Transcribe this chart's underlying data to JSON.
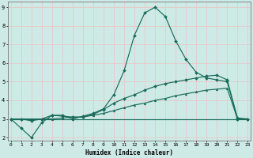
{
  "xlabel": "Humidex (Indice chaleur)",
  "xlim": [
    -0.3,
    23.3
  ],
  "ylim": [
    1.85,
    9.3
  ],
  "xtick_vals": [
    0,
    1,
    2,
    3,
    4,
    5,
    6,
    7,
    8,
    9,
    10,
    11,
    12,
    13,
    14,
    15,
    16,
    17,
    18,
    19,
    20,
    21,
    22,
    23
  ],
  "ytick_vals": [
    2,
    3,
    4,
    5,
    6,
    7,
    8,
    9
  ],
  "bg_color": "#ceeae6",
  "grid_color": "#b8d8d4",
  "line_color": "#1a6b5a",
  "curve1_x": [
    0,
    1,
    2,
    3,
    4,
    5,
    6,
    7,
    8,
    9,
    10,
    11,
    12,
    13,
    14,
    15,
    16,
    17,
    18,
    19,
    20,
    21,
    22,
    23
  ],
  "curve1_y": [
    3.0,
    2.5,
    2.0,
    2.8,
    3.2,
    3.2,
    3.0,
    3.15,
    3.3,
    3.55,
    4.3,
    5.6,
    7.5,
    8.7,
    9.0,
    8.5,
    7.2,
    6.2,
    5.5,
    5.2,
    5.1,
    5.0,
    3.0,
    3.0
  ],
  "curve2_x": [
    0,
    1,
    2,
    3,
    4,
    5,
    6,
    7,
    8,
    9,
    10,
    11,
    12,
    13,
    14,
    15,
    16,
    17,
    18,
    19,
    20,
    21,
    22,
    23
  ],
  "curve2_y": [
    3.0,
    3.0,
    2.9,
    3.0,
    3.2,
    3.15,
    3.1,
    3.1,
    3.25,
    3.5,
    3.85,
    4.1,
    4.3,
    4.55,
    4.75,
    4.9,
    5.0,
    5.1,
    5.2,
    5.3,
    5.35,
    5.1,
    3.05,
    3.0
  ],
  "curve3_x": [
    0,
    1,
    2,
    3,
    4,
    5,
    6,
    7,
    8,
    9,
    10,
    11,
    12,
    13,
    14,
    15,
    16,
    17,
    18,
    19,
    20,
    21,
    22,
    23
  ],
  "curve3_y": [
    3.0,
    3.0,
    3.0,
    3.0,
    3.0,
    3.05,
    3.1,
    3.1,
    3.2,
    3.3,
    3.45,
    3.6,
    3.75,
    3.85,
    4.0,
    4.1,
    4.25,
    4.35,
    4.45,
    4.55,
    4.6,
    4.65,
    3.0,
    3.0
  ],
  "flat_line_x": [
    0,
    1,
    2,
    3,
    4,
    5,
    6,
    7,
    8,
    9,
    10,
    11,
    12,
    13,
    14,
    15,
    16,
    17,
    18,
    19,
    20,
    21,
    22,
    23
  ],
  "flat_line_y": [
    3.0,
    3.0,
    3.0,
    3.0,
    3.0,
    3.0,
    3.0,
    3.0,
    3.0,
    3.0,
    3.0,
    3.0,
    3.0,
    3.0,
    3.0,
    3.0,
    3.0,
    3.0,
    3.0,
    3.0,
    3.0,
    3.0,
    3.0,
    3.0
  ]
}
